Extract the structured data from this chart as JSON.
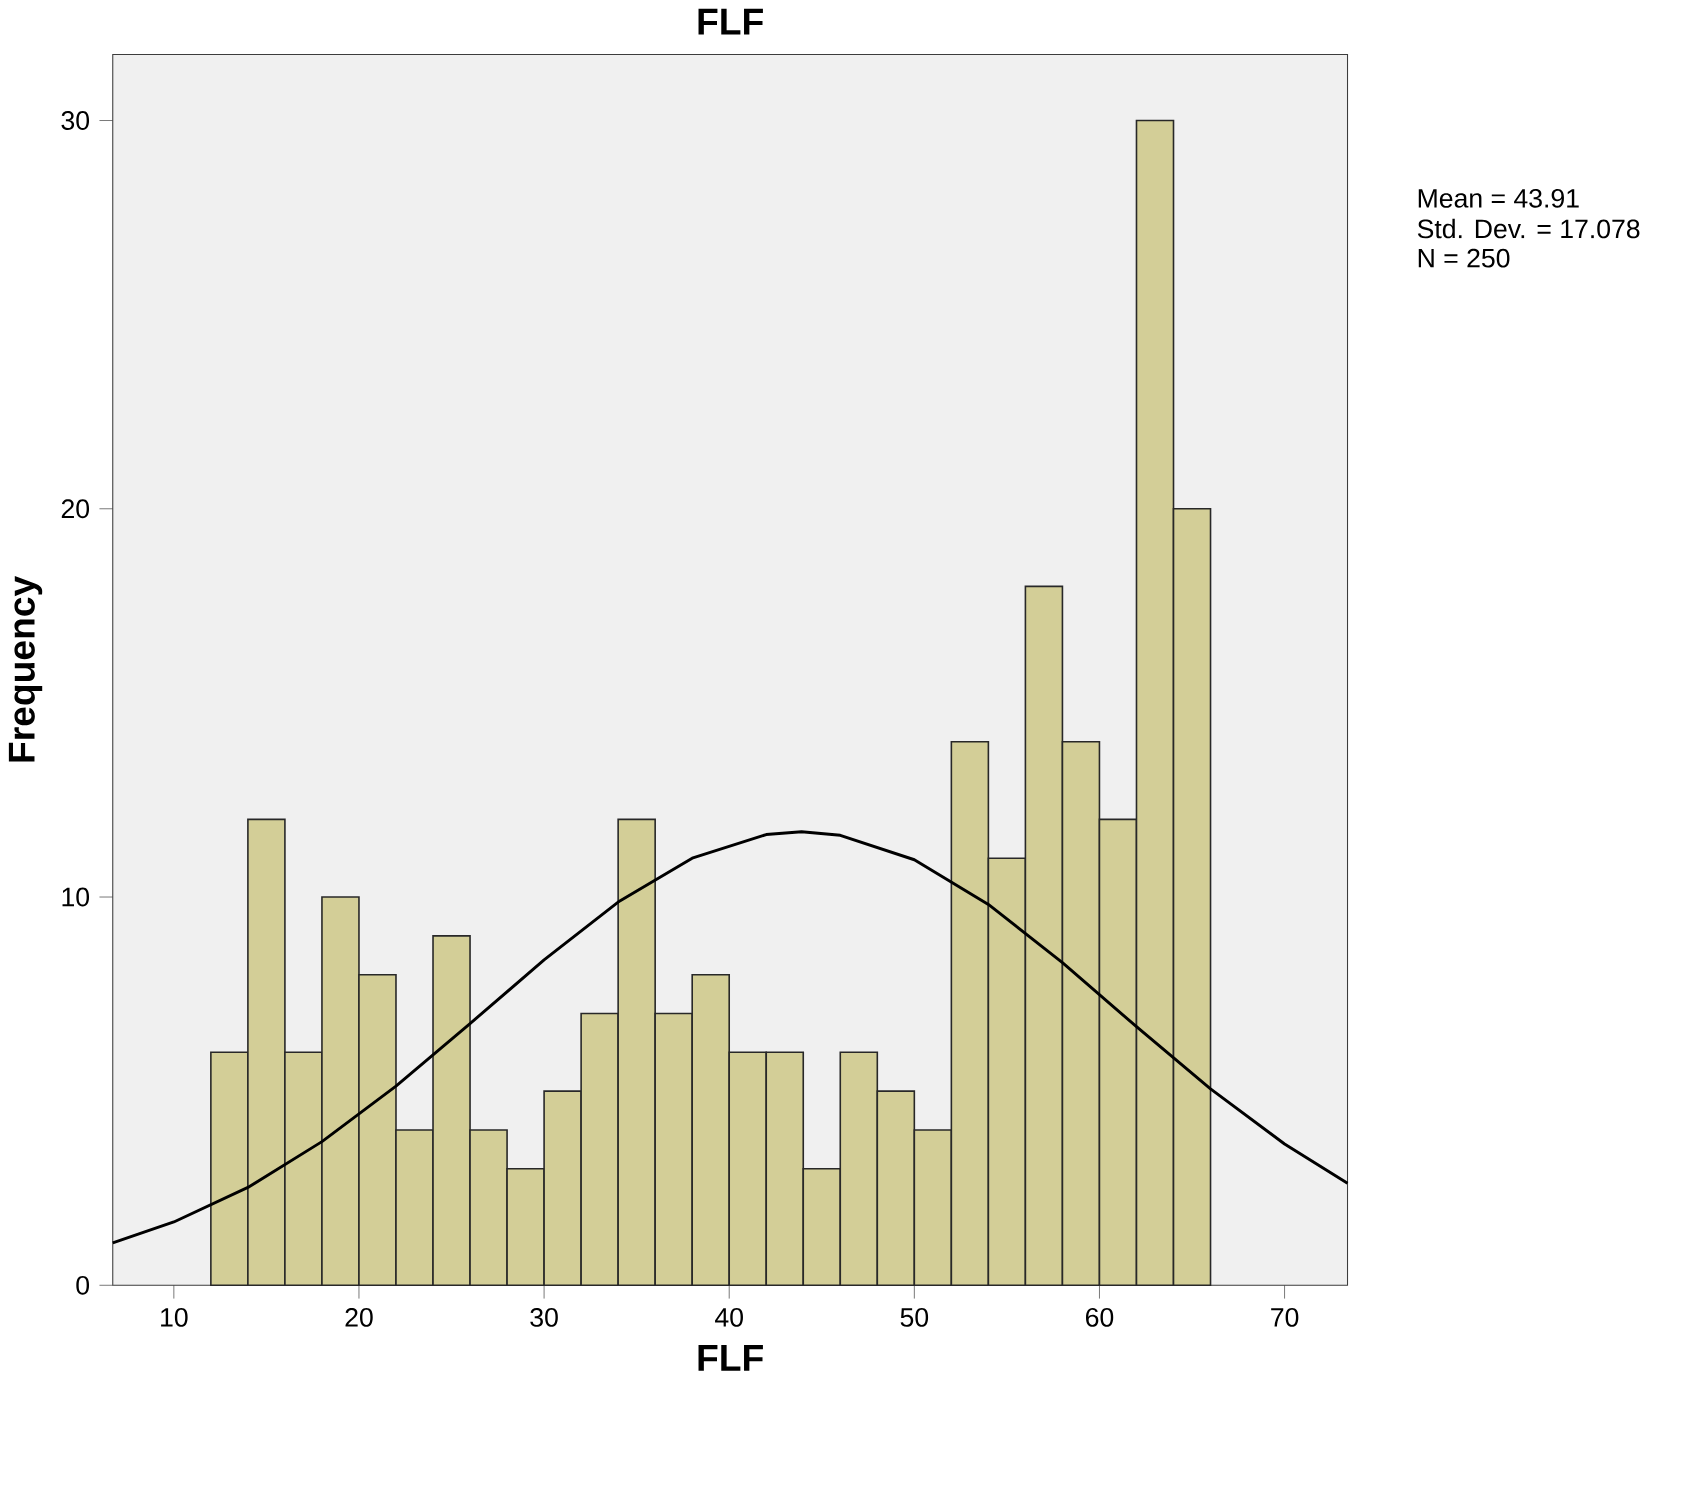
{
  "chart_data": {
    "type": "histogram",
    "title": "FLF",
    "xlabel": "FLF",
    "ylabel": "Frequency",
    "bins": [
      12,
      14,
      16,
      18,
      20,
      22,
      24,
      26,
      28,
      30,
      32,
      34,
      36,
      38,
      40,
      42,
      44,
      46,
      48,
      50,
      52,
      54,
      56,
      58,
      60,
      62,
      64,
      66
    ],
    "values": [
      6,
      12,
      6,
      10,
      8,
      4,
      9,
      4,
      3,
      5,
      7,
      12,
      7,
      8,
      6,
      6,
      3,
      6,
      5,
      4,
      14,
      11,
      18,
      14,
      12,
      30,
      20
    ],
    "color": "#d3ce97",
    "series": [
      {
        "type": "line",
        "color": "#000000",
        "x": [
          6.7,
          10,
          14,
          18,
          22,
          26,
          30,
          34,
          38,
          42,
          43.91,
          46,
          50,
          54,
          58,
          62,
          66,
          70,
          73.4
        ],
        "values": [
          1.09,
          1.63,
          2.52,
          3.7,
          5.13,
          6.74,
          8.38,
          9.87,
          11.0,
          11.61,
          11.68,
          11.59,
          10.96,
          9.81,
          8.31,
          6.66,
          5.06,
          3.64,
          2.63
        ]
      }
    ],
    "xlim": [
      6.7,
      73.4
    ],
    "ylim": [
      0,
      31.7
    ],
    "xticks": [
      10,
      20,
      30,
      40,
      50,
      60,
      70
    ],
    "yticks": [
      0,
      10,
      20,
      30
    ],
    "grid": false,
    "annotations": [
      "Mean = 43.91",
      "Std. Dev. = 17.078",
      "N = 250"
    ]
  }
}
